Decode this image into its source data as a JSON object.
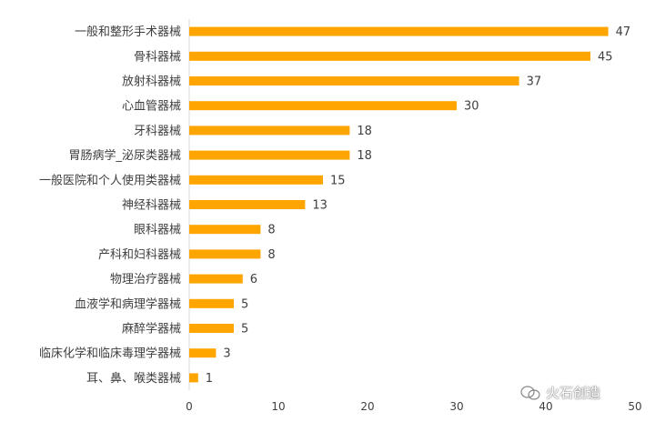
{
  "chart_data": {
    "type": "bar",
    "orientation": "horizontal",
    "categories": [
      "一般和整形手术器械",
      "骨科器械",
      "放射科器械",
      "心血管器械",
      "牙科器械",
      "胃肠病学_泌尿类器械",
      "一般医院和个人使用类器械",
      "神经科器械",
      "眼科器械",
      "产科和妇科器械",
      "物理治疗器械",
      "血液学和病理学器械",
      "麻醉学器械",
      "临床化学和临床毒理学器械",
      "耳、鼻、喉类器械"
    ],
    "values": [
      47,
      45,
      37,
      30,
      18,
      18,
      15,
      13,
      8,
      8,
      6,
      5,
      5,
      3,
      1
    ],
    "xlim": [
      0,
      50
    ],
    "xticks": [
      0,
      10,
      20,
      30,
      40,
      50
    ],
    "bar_color": "#FFA500",
    "grid": false,
    "legend": "none"
  },
  "watermark": {
    "text": "火石创造",
    "icon": "wechat-icon"
  }
}
